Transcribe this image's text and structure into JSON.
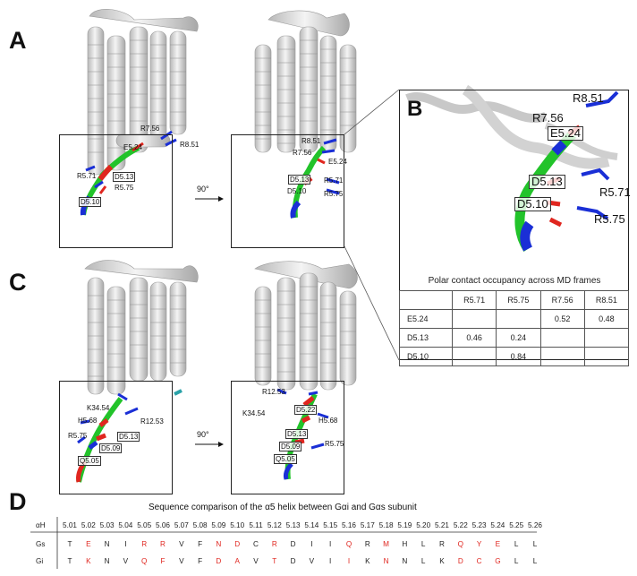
{
  "panels": {
    "A": "A",
    "B": "B",
    "C": "C",
    "D": "D"
  },
  "rotation_label": "90°",
  "panelA": {
    "left_labels": [
      "R7.56",
      "R8.51",
      "E5.24",
      "R5.71",
      "D5.13",
      "R5.75",
      "D5.10"
    ],
    "right_labels": [
      "R8.51",
      "R7.56",
      "E5.24",
      "D5.13",
      "R5.71",
      "D5.10",
      "R5.75"
    ]
  },
  "panelB": {
    "labels": [
      "R8.51",
      "R7.56",
      "E5.24",
      "D5.13",
      "R5.71",
      "D5.10",
      "R5.75"
    ],
    "table_title": "Polar contact occupancy across MD frames",
    "columns": [
      "",
      "R5.71",
      "R5.75",
      "R7.56",
      "R8.51"
    ],
    "rows": [
      {
        "label": "E5.24",
        "cells": [
          "",
          "",
          "0.52",
          "0.48"
        ]
      },
      {
        "label": "D5.13",
        "cells": [
          "0.46",
          "0.24",
          "",
          ""
        ]
      },
      {
        "label": "D5.10",
        "cells": [
          "",
          "0.84",
          "",
          ""
        ]
      }
    ]
  },
  "panelC": {
    "left_labels": [
      "K34.54",
      "H5.68",
      "R12.53",
      "D5.13",
      "R5.75",
      "D5.09",
      "Q5.05"
    ],
    "right_labels": [
      "R12.53",
      "K34.54",
      "D5.22",
      "H5.68",
      "D5.13",
      "D5.09",
      "R5.75",
      "Q5.05"
    ]
  },
  "panelD": {
    "title": "Sequence comparison of the α5 helix between Gαi and Gαs subunit",
    "header_label": "αH",
    "positions": [
      "5.01",
      "5.02",
      "5.03",
      "5.04",
      "5.05",
      "5.06",
      "5.07",
      "5.08",
      "5.09",
      "5.10",
      "5.11",
      "5.12",
      "5.13",
      "5.14",
      "5.15",
      "5.16",
      "5.17",
      "5.18",
      "5.19",
      "5.20",
      "5.21",
      "5.22",
      "5.23",
      "5.24",
      "5.25",
      "5.26"
    ],
    "rows": [
      {
        "label": "Gs",
        "residues": [
          "T",
          "E",
          "N",
          "I",
          "R",
          "R",
          "V",
          "F",
          "N",
          "D",
          "C",
          "R",
          "D",
          "I",
          "I",
          "Q",
          "R",
          "M",
          "H",
          "L",
          "R",
          "Q",
          "Y",
          "E",
          "L",
          "L"
        ]
      },
      {
        "label": "Gi",
        "residues": [
          "T",
          "K",
          "N",
          "V",
          "Q",
          "F",
          "V",
          "F",
          "D",
          "A",
          "V",
          "T",
          "D",
          "V",
          "I",
          "I",
          "K",
          "N",
          "N",
          "L",
          "K",
          "D",
          "C",
          "G",
          "L",
          "L"
        ]
      }
    ],
    "highlight_color": "#e0261f",
    "highlight_columns": [
      1,
      4,
      5,
      8,
      9,
      11,
      15,
      17,
      21,
      22,
      23
    ]
  },
  "colors": {
    "acidic_residue": "#e0261f",
    "basic_residue": "#1a2fd6",
    "helix_green": "#22c32a"
  }
}
